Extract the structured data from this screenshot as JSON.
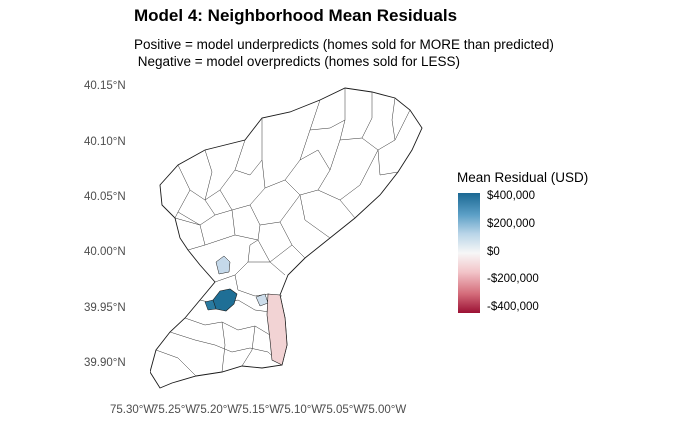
{
  "title": "Model 4: Neighborhood Mean Residuals",
  "subtitle_line1": "Positive = model underpredicts (homes sold for MORE than predicted)",
  "subtitle_line2": " Negative = model overpredicts (homes sold for LESS)",
  "y_axis_labels": [
    "40.15°N",
    "40.10°N",
    "40.05°N",
    "40.00°N",
    "39.95°N",
    "39.90°N"
  ],
  "x_axis_labels": [
    "75.30°W",
    "75.25°W",
    "75.20°W",
    "75.15°W",
    "75.10°W",
    "75.05°W",
    "75.00°W"
  ],
  "legend": {
    "title": "Mean Residual (USD)",
    "ticks": [
      "$400,000",
      "$200,000",
      "$0",
      "-$200,000",
      "-$400,000"
    ],
    "colors": {
      "high": "#1b6893",
      "mid": "#f7f7f7",
      "low": "#9b1134"
    }
  },
  "highlight_colors": {
    "strong_positive": "#1f6f96",
    "light_positive": "#c5d9ea",
    "light_negative": "#f2d3d4"
  }
}
